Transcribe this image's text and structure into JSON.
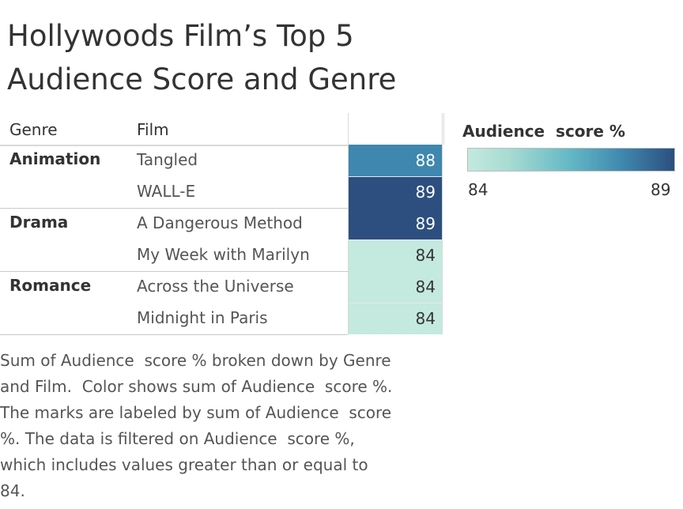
{
  "title_lines": [
    "Hollywoods Film’s Top 5",
    "Audience Score and Genre"
  ],
  "headers": {
    "genre": "Genre",
    "film": "Film",
    "value": ""
  },
  "legend": {
    "title": "Audience  score %",
    "min_label": "84",
    "max_label": "89",
    "min": 84,
    "max": 89,
    "colors": [
      "#c4e9df",
      "#63b7c5",
      "#3f87ae",
      "#2c4f7f"
    ]
  },
  "chart_data": {
    "type": "table",
    "title": "Hollywoods Film’s Top 5 Audience Score and Genre",
    "measure": "Audience  score %",
    "columns": [
      "Genre",
      "Film",
      "Audience  score %"
    ],
    "groups": [
      {
        "genre": "Animation",
        "rows": [
          {
            "film": "Tangled",
            "value": 88
          },
          {
            "film": "WALL-E",
            "value": 89
          }
        ]
      },
      {
        "genre": "Drama",
        "rows": [
          {
            "film": "A Dangerous Method",
            "value": 89
          },
          {
            "film": "My Week with Marilyn",
            "value": 84
          }
        ]
      },
      {
        "genre": "Romance",
        "rows": [
          {
            "film": "Across the Universe",
            "value": 84
          },
          {
            "film": "Midnight in Paris",
            "value": 84
          }
        ]
      }
    ]
  },
  "caption": "Sum of Audience  score % broken down by Genre\nand Film.  Color shows sum of Audience  score %.\nThe marks are labeled by sum of Audience  score\n%. The data is filtered on Audience  score %,\nwhich includes values greater than or equal to\n84."
}
